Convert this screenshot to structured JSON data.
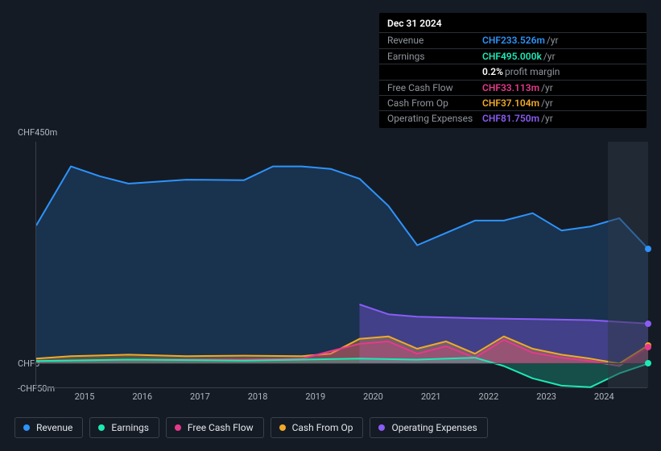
{
  "tooltip": {
    "date": "Dec 31 2024",
    "rows": [
      {
        "label": "Revenue",
        "value": "CHF233.526m",
        "unit": "/yr",
        "color": "#2e93fa"
      },
      {
        "label": "Earnings",
        "value": "CHF495.000k",
        "unit": "/yr",
        "color": "#1de9b6"
      },
      {
        "label": "",
        "value": "0.2%",
        "unit": "profit margin",
        "color": "#ffffff"
      },
      {
        "label": "Free Cash Flow",
        "value": "CHF33.113m",
        "unit": "/yr",
        "color": "#e6398b"
      },
      {
        "label": "Cash From Op",
        "value": "CHF37.104m",
        "unit": "/yr",
        "color": "#f0a929"
      },
      {
        "label": "Operating Expenses",
        "value": "CHF81.750m",
        "unit": "/yr",
        "color": "#8b5cf6"
      }
    ]
  },
  "chart": {
    "type": "area-line",
    "background": "#151b24",
    "grid_color": "#3a4049",
    "yaxis": {
      "top_label": "CHF450m",
      "zero_label": "CHF0",
      "bottom_label": "-CHF50m",
      "min": -50,
      "max": 450
    },
    "xaxis": {
      "years": [
        "2015",
        "2016",
        "2017",
        "2018",
        "2019",
        "2020",
        "2021",
        "2022",
        "2023",
        "2024"
      ],
      "min": 2014.4,
      "max": 2025.0
    },
    "highlight": {
      "from": 2024.3,
      "to": 2025.0
    },
    "series": {
      "revenue": {
        "label": "Revenue",
        "color": "#2e93fa",
        "fill": "rgba(46,147,250,0.20)",
        "x": [
          2014.4,
          2015.0,
          2015.5,
          2016.0,
          2017.0,
          2018.0,
          2018.5,
          2019.0,
          2019.5,
          2020.0,
          2020.5,
          2021.0,
          2021.5,
          2022.0,
          2022.5,
          2023.0,
          2023.5,
          2024.0,
          2024.5,
          2025.0
        ],
        "y": [
          280,
          400,
          380,
          365,
          373,
          372,
          400,
          400,
          395,
          375,
          320,
          240,
          265,
          290,
          290,
          305,
          270,
          278,
          295,
          233
        ]
      },
      "operating_expenses": {
        "label": "Operating Expenses",
        "color": "#8b5cf6",
        "fill": "rgba(139,92,246,0.35)",
        "x": [
          2020.0,
          2020.5,
          2021.0,
          2022.0,
          2023.0,
          2024.0,
          2025.0
        ],
        "y": [
          120,
          100,
          95,
          92,
          90,
          88,
          81
        ]
      },
      "cash_from_op": {
        "label": "Cash From Op",
        "color": "#f0a929",
        "fill": "rgba(240,169,41,0.30)",
        "x": [
          2014.4,
          2015.0,
          2016.0,
          2017.0,
          2018.0,
          2019.0,
          2019.5,
          2020.0,
          2020.5,
          2021.0,
          2021.5,
          2022.0,
          2022.5,
          2023.0,
          2023.5,
          2024.0,
          2024.5,
          2025.0
        ],
        "y": [
          10,
          15,
          18,
          15,
          16,
          15,
          20,
          50,
          55,
          30,
          45,
          20,
          55,
          30,
          18,
          10,
          0,
          37
        ]
      },
      "free_cash_flow": {
        "label": "Free Cash Flow",
        "color": "#e6398b",
        "fill": "rgba(230,57,139,0.30)",
        "x": [
          2014.4,
          2016.0,
          2018.0,
          2019.0,
          2020.0,
          2020.5,
          2021.0,
          2021.5,
          2022.0,
          2022.5,
          2023.0,
          2023.5,
          2024.0,
          2024.5,
          2025.0
        ],
        "y": [
          5,
          8,
          8,
          10,
          40,
          45,
          20,
          35,
          12,
          48,
          22,
          12,
          5,
          -5,
          33
        ]
      },
      "earnings": {
        "label": "Earnings",
        "color": "#1de9b6",
        "fill": "rgba(29,233,182,0.25)",
        "x": [
          2014.4,
          2016.0,
          2018.0,
          2020.0,
          2021.0,
          2022.0,
          2022.5,
          2023.0,
          2023.5,
          2024.0,
          2024.5,
          2025.0
        ],
        "y": [
          5,
          8,
          6,
          10,
          8,
          12,
          -5,
          -30,
          -45,
          -48,
          -20,
          0
        ]
      }
    },
    "legend_order": [
      "revenue",
      "earnings",
      "free_cash_flow",
      "cash_from_op",
      "operating_expenses"
    ]
  },
  "style": {
    "label_color": "#b0b6be",
    "tooltip_label_color": "#8e949c",
    "font_size_small": 11,
    "font_size_legend": 12,
    "line_width": 2,
    "end_dot_radius": 4
  }
}
